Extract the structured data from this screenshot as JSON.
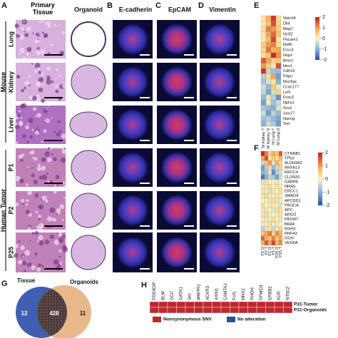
{
  "panel_labels": [
    "A",
    "B",
    "C",
    "D",
    "E",
    "F",
    "G",
    "H"
  ],
  "panel_a": {
    "headers": [
      "Primary Tissue",
      "Organoid"
    ],
    "row_labels": [
      "Lung",
      "Kidney",
      "Liver",
      "P1",
      "P2",
      "P25"
    ],
    "groups": [
      "Mouse",
      "Human Tumor"
    ]
  },
  "stains": [
    "E-cadherin",
    "EpCAM",
    "Vimentin"
  ],
  "heatmap_e": {
    "genes": [
      "Notch4",
      "Dll4",
      "Map7",
      "Nr2f2",
      "Pecam1",
      "Mafb",
      "Ercc4",
      "Hopx",
      "Bms1",
      "Hes1",
      "Cdh16",
      "Pdpn",
      "Muc5ac",
      "Ccdc177",
      "Lef1",
      "Foxc2",
      "Nphs1",
      "Sox2",
      "Sox17",
      "Nanog",
      "Tert"
    ],
    "columns": [
      "M Kidney T",
      "M Kidney O",
      "M Lung T",
      "M Lung O"
    ],
    "values": [
      [
        0.2,
        0.8,
        1.8,
        0.3
      ],
      [
        0.1,
        0.6,
        1.6,
        0.4
      ],
      [
        0.3,
        1.2,
        1.0,
        0.5
      ],
      [
        0.2,
        0.9,
        1.4,
        0.6
      ],
      [
        0.1,
        0.7,
        1.7,
        0.2
      ],
      [
        0.5,
        1.0,
        1.2,
        0.3
      ],
      [
        0.4,
        1.3,
        0.8,
        0.9
      ],
      [
        0.3,
        0.6,
        1.9,
        1.1
      ],
      [
        1.5,
        0.9,
        0.4,
        0.6
      ],
      [
        1.0,
        0.5,
        0.2,
        1.6
      ],
      [
        1.8,
        -0.5,
        -0.8,
        -0.9
      ],
      [
        -0.6,
        0.3,
        0.9,
        -1.2
      ],
      [
        -0.8,
        -0.3,
        0.2,
        -1.0
      ],
      [
        -0.3,
        -0.9,
        0.5,
        -0.2
      ],
      [
        -0.5,
        -1.1,
        -0.4,
        0.4
      ],
      [
        -0.9,
        -0.2,
        -0.6,
        -1.3
      ],
      [
        -1.2,
        0.1,
        -0.8,
        -0.4
      ],
      [
        -0.7,
        -0.9,
        -1.0,
        -0.3
      ],
      [
        -0.4,
        -1.2,
        -0.5,
        -0.9
      ],
      [
        -0.8,
        -0.6,
        -0.9,
        -1.1
      ],
      [
        -1.0,
        -0.4,
        -0.7,
        -1.2
      ]
    ],
    "colorbar": {
      "lim": [
        -2,
        2
      ],
      "ticks": [
        2,
        1,
        0,
        -1,
        -2
      ]
    }
  },
  "heatmap_f": {
    "genes": [
      "CTNNB1",
      "TP53",
      "ALDH3A2",
      "ANXA13",
      "ERCC4",
      "CLDN20",
      "GABRE",
      "NRAS",
      "ERCC1",
      "SMAD4",
      "APCDD1",
      "PIK3CA",
      "APC",
      "ARID2",
      "FBXW7",
      "BRAF",
      "MSH3",
      "RNF43",
      "GGH",
      "VEGFA"
    ],
    "columns": [
      "P2 O",
      "P2 T",
      "P1 O",
      "P1 T",
      "P25 O",
      "P25 T"
    ],
    "values": [
      [
        2.0,
        1.2,
        0.4,
        0.8,
        0.6,
        1.5
      ],
      [
        0.9,
        1.6,
        0.2,
        0.5,
        0.3,
        0.7
      ],
      [
        -0.4,
        0.6,
        1.0,
        -0.2,
        0.8,
        0.3
      ],
      [
        -1.2,
        -0.6,
        0.3,
        -0.9,
        -0.4,
        0.5
      ],
      [
        -1.0,
        -0.8,
        -0.2,
        -1.4,
        -0.6,
        -0.3
      ],
      [
        -1.6,
        -1.0,
        -0.5,
        -0.7,
        -1.2,
        -0.4
      ],
      [
        -0.3,
        0.2,
        -0.1,
        0.1,
        -0.2,
        0.0
      ],
      [
        0.1,
        -0.2,
        0.3,
        0.0,
        0.2,
        -0.1
      ],
      [
        0.2,
        0.1,
        -0.3,
        0.2,
        0.0,
        0.3
      ],
      [
        -0.2,
        0.3,
        0.1,
        -0.1,
        0.2,
        0.1
      ],
      [
        0.0,
        -0.1,
        0.2,
        0.3,
        -0.2,
        0.1
      ],
      [
        0.3,
        0.0,
        -0.2,
        0.1,
        0.1,
        -0.3
      ],
      [
        -0.1,
        0.2,
        0.0,
        -0.2,
        0.3,
        0.2
      ],
      [
        0.2,
        -0.3,
        0.1,
        0.0,
        -0.1,
        0.2
      ],
      [
        0.1,
        0.2,
        -0.1,
        0.3,
        0.0,
        -0.2
      ],
      [
        -0.2,
        0.1,
        0.3,
        -0.1,
        0.2,
        0.0
      ],
      [
        -0.6,
        -0.3,
        0.2,
        -0.5,
        -0.2,
        0.4
      ],
      [
        0.6,
        0.9,
        1.3,
        0.4,
        1.1,
        0.7
      ],
      [
        1.4,
        0.8,
        0.6,
        1.2,
        0.5,
        0.9
      ],
      [
        0.8,
        1.5,
        0.9,
        1.7,
        0.7,
        1.1
      ]
    ],
    "colorbar": {
      "lim": [
        -2,
        2
      ],
      "ticks": [
        2,
        1,
        0,
        -1,
        -2
      ]
    }
  },
  "venn": {
    "sets": [
      "Tissue",
      "Organoids"
    ],
    "counts": [
      "12",
      "428",
      "11"
    ]
  },
  "panel_h": {
    "genes": [
      "PDE4DIP",
      "BLM",
      "DCC",
      "GATA1",
      "SKI",
      "WWTR1",
      "ACKR3",
      "AXIN1",
      "CAMTA1",
      "FUS",
      "MNX1",
      "RHOH",
      "RFWD3",
      "ERBB2",
      "KDR",
      "NT5C2"
    ],
    "rows": [
      "P31-Tumor",
      "P31-Organoids"
    ],
    "legend": [
      "Nonsynonymous SNV",
      "No alteration"
    ]
  }
}
